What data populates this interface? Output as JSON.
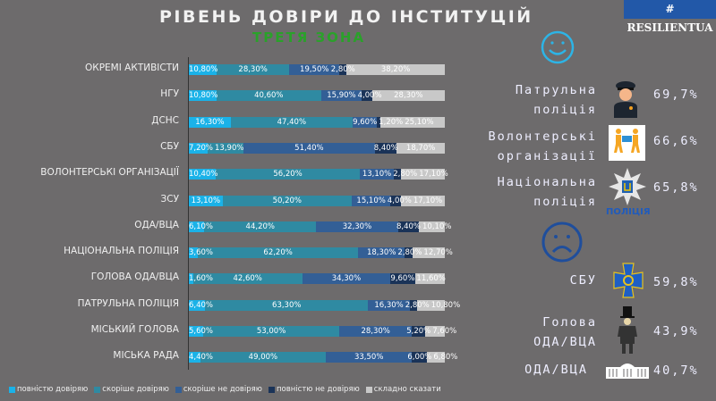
{
  "header": {
    "title": "РІВЕНЬ ДОВІРИ ДО ІНСТИТУЦІЙ",
    "subtitle": "ТРЕТЯ ЗОНА",
    "badge": "# RESILIENTUA"
  },
  "chart_data": {
    "type": "bar",
    "stacked": true,
    "orientation": "horizontal",
    "title": "РІВЕНЬ ДОВІРИ ДО ІНСТИТУЦІЙ",
    "subtitle": "ТРЕТЯ ЗОНА",
    "legend_position": "bottom",
    "categories": [
      "ОКРЕМІ АКТИВІСТИ",
      "НГУ",
      "ДСНС",
      "СБУ",
      "ВОЛОНТЕРСЬКІ ОРГАНІЗАЦІЇ",
      "ЗСУ",
      "ОДА/ВЦА",
      "НАЦІОНАЛЬНА ПОЛІЦІЯ",
      "ГОЛОВА ОДА/ВЦА",
      "ПАТРУЛЬНА ПОЛІЦІЯ",
      "МІСЬКИЙ ГОЛОВА",
      "МІСЬКА РАДА"
    ],
    "series": [
      {
        "name": "повністю довіряю",
        "color": "#1ab2e8",
        "values": [
          10.8,
          10.8,
          16.3,
          7.2,
          10.4,
          13.1,
          6.1,
          3.6,
          1.6,
          6.4,
          5.6,
          4.4
        ],
        "labels": [
          "10,80%",
          "10,80%",
          "16,30%",
          "7,20%",
          "10,40%",
          "13,10%",
          "6,10%",
          "3,60%",
          "1,60%",
          "6,40%",
          "5,60%",
          "4,40%"
        ]
      },
      {
        "name": "скоріше довіряю",
        "color": "#2f8aa2",
        "values": [
          28.3,
          40.6,
          47.4,
          13.9,
          56.2,
          50.2,
          44.2,
          62.2,
          42.6,
          63.3,
          53.0,
          49.0
        ],
        "labels": [
          "28,30%",
          "40,60%",
          "47,40%",
          "13,90%",
          "56,20%",
          "50,20%",
          "44,20%",
          "62,20%",
          "42,60%",
          "63,30%",
          "53,00%",
          "49,00%"
        ]
      },
      {
        "name": "скоріше не довіряю",
        "color": "#335f96",
        "values": [
          19.5,
          15.9,
          9.6,
          51.4,
          13.1,
          15.1,
          32.3,
          18.3,
          34.3,
          16.3,
          28.3,
          33.5
        ],
        "labels": [
          "19,50%",
          "15,90%",
          "9,60%",
          "51,40%",
          "13,10%",
          "15,10%",
          "32,30%",
          "18,30%",
          "34,30%",
          "16,30%",
          "28,30%",
          "33,50%"
        ]
      },
      {
        "name": "повністю не довіряю",
        "color": "#1a3358",
        "values": [
          2.8,
          4.0,
          1.2,
          8.4,
          2.8,
          4.0,
          8.4,
          2.8,
          9.6,
          2.8,
          5.2,
          6.0
        ],
        "labels": [
          "2,80%",
          "4,00%",
          "1,20%",
          "8,40%",
          "2,80%",
          "4,00%",
          "8,40%",
          "2,80%",
          "9,60%",
          "2,80%",
          "5,20%",
          "6,00%"
        ]
      },
      {
        "name": "складно сказати",
        "color": "#c8c8c8",
        "values": [
          38.2,
          28.3,
          25.1,
          18.7,
          17.1,
          17.1,
          10.1,
          12.7,
          11.6,
          10.8,
          7.6,
          6.8
        ],
        "labels": [
          "38,20%",
          "28,30%",
          "25,10%",
          "18,70%",
          "17,10%",
          "17,10%",
          "10,10%",
          "12,70%",
          "11,60%",
          "10,80%",
          "7,60%",
          "6,80%"
        ]
      }
    ]
  },
  "trusted": [
    {
      "label_1": "Патрульна",
      "label_2": "поліція",
      "value": "69,7%",
      "icon": "police-officer-icon"
    },
    {
      "label_1": "Волонтерські",
      "label_2": "організації",
      "value": "66,6%",
      "icon": "volunteers-icon"
    },
    {
      "label_1": "Національна",
      "label_2": "поліція",
      "value": "65,8%",
      "icon": "national-police-emblem-icon",
      "icon_text": "ПОЛІЦІЯ"
    }
  ],
  "distrusted": [
    {
      "label_1": "СБУ",
      "value": "59,8%",
      "icon": "sbu-emblem-icon"
    },
    {
      "label_1": "Голова",
      "label_2": "ОДА/ВЦА",
      "value": "43,9%",
      "icon": "official-man-icon"
    },
    {
      "label_1": "ОДА/ВЦА",
      "value": "40,7%",
      "icon": "government-building-icon"
    }
  ],
  "colors": {
    "background": "#6d6b6c",
    "happy": "#2db4e6",
    "sad": "#1f4e9c"
  }
}
